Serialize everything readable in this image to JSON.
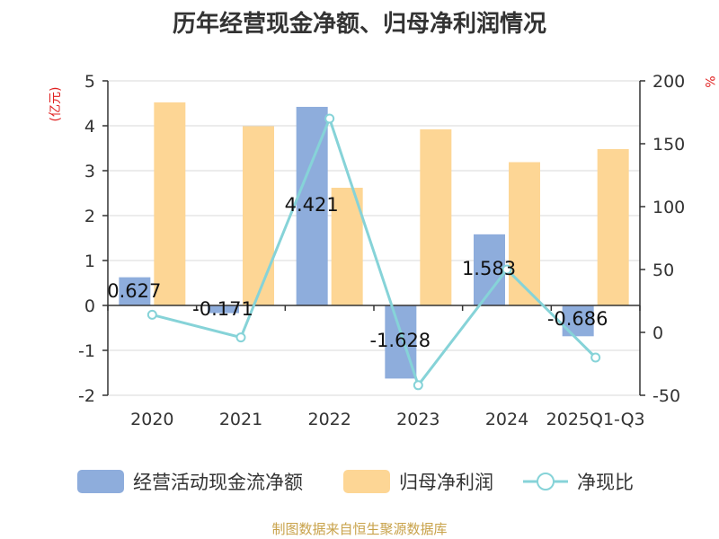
{
  "title": "历年经营现金净额、归母净利润情况",
  "source": "制图数据来自恒生聚源数据库",
  "chart_data": {
    "type": "bar",
    "categories": [
      "2020",
      "2021",
      "2022",
      "2023",
      "2024",
      "2025Q1-Q3"
    ],
    "series": [
      {
        "name": "经营活动现金流净额",
        "kind": "bar",
        "axis": "left",
        "color": "#8eaddc",
        "values": [
          0.627,
          -0.171,
          4.421,
          -1.628,
          1.583,
          -0.686
        ],
        "labels": [
          "0.627",
          "-0.171",
          "4.421",
          "-1.628",
          "1.583",
          "-0.686"
        ]
      },
      {
        "name": "归母净利润",
        "kind": "bar",
        "axis": "left",
        "color": "#fdd695",
        "values": [
          4.52,
          3.99,
          2.62,
          3.92,
          3.19,
          3.48
        ]
      },
      {
        "name": "净现比",
        "kind": "line",
        "axis": "right",
        "color": "#86d3d8",
        "values": [
          14,
          -4,
          170,
          -42,
          50,
          -20
        ]
      }
    ],
    "left_axis": {
      "unit": "(亿元)",
      "ylim": [
        -2,
        5
      ],
      "ticks": [
        "5",
        "4",
        "3",
        "2",
        "1",
        "0",
        "-1",
        "-2"
      ]
    },
    "right_axis": {
      "unit": "%",
      "ylim": [
        -50,
        200
      ],
      "ticks": [
        "200",
        "150",
        "100",
        "50",
        "0",
        "-50"
      ]
    },
    "grid": true,
    "legend_position": "bottom"
  }
}
